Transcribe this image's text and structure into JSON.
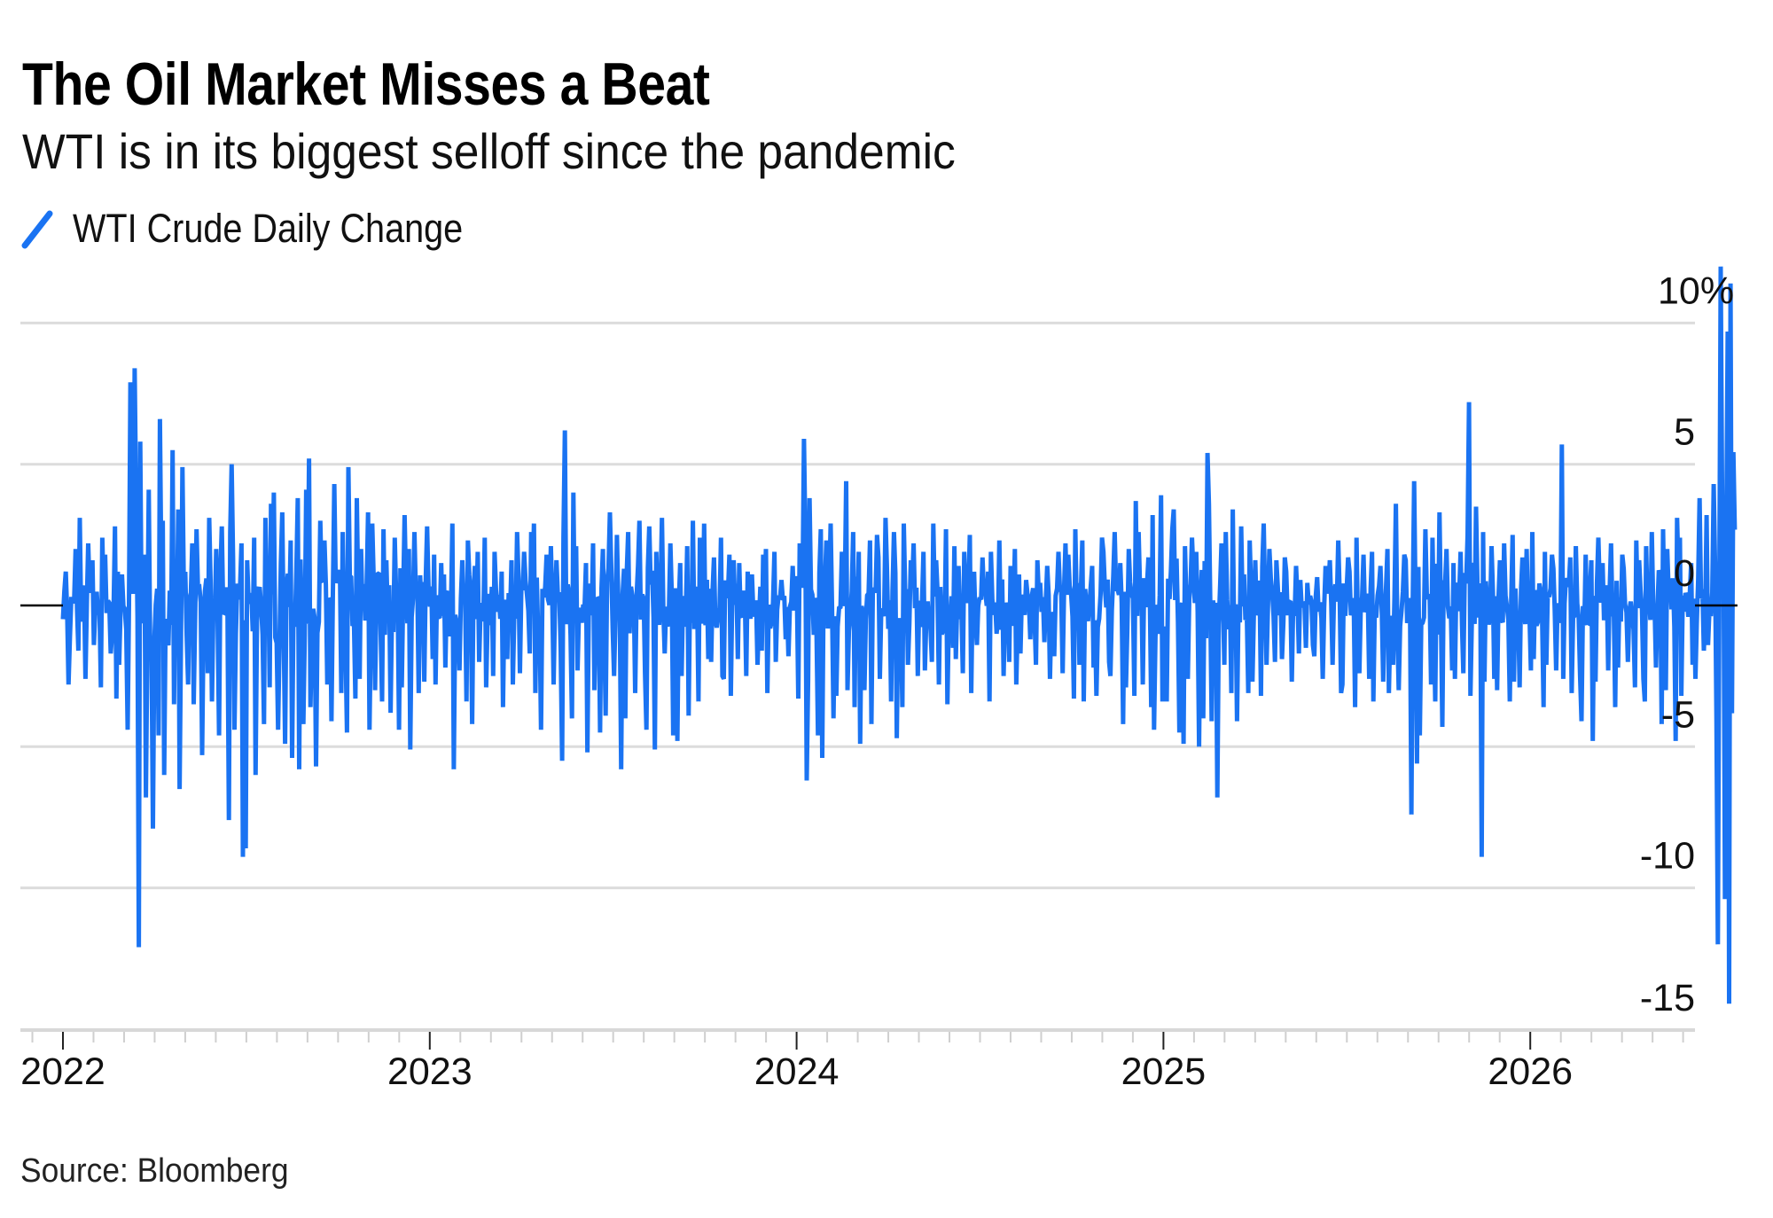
{
  "title": "The Oil Market Misses a Beat",
  "subtitle": "WTI is in its biggest selloff since the pandemic",
  "source": "Source: Bloomberg",
  "chart_data": {
    "type": "line",
    "title": "The Oil Market Misses a Beat",
    "subtitle": "WTI is in its biggest selloff since the pandemic",
    "xlabel": "",
    "ylabel": "",
    "legend": {
      "position": "top-left",
      "entries": [
        {
          "name": "WTI Crude Daily Change",
          "color": "#1a73f2"
        }
      ]
    },
    "y_unit": "%",
    "ylim": [
      -15,
      10
    ],
    "y_ticks": [
      10,
      5,
      0,
      -5,
      -10,
      -15
    ],
    "y_tick_labels": [
      "10%",
      "5",
      "0",
      "-5",
      "-10",
      "-15"
    ],
    "xlim": [
      "2022-01-01",
      "2026-04-30"
    ],
    "x_ticks": [
      "2022",
      "2023",
      "2024",
      "2025",
      "2026"
    ],
    "x_minor_ticks": "monthly",
    "grid": true,
    "zero_line": true,
    "series": [
      {
        "name": "WTI Crude Daily Change",
        "color": "#1a73f2",
        "resolution": "weekly high/low of daily % change (estimated from chart)",
        "start": "2022-01-03",
        "weekly_high_low": [
          [
            1.2,
            -2.8
          ],
          [
            2.0,
            -1.1
          ],
          [
            3.1,
            -1.6
          ],
          [
            2.2,
            -2.6
          ],
          [
            1.6,
            -1.4
          ],
          [
            2.4,
            -2.9
          ],
          [
            1.8,
            -1.7
          ],
          [
            2.8,
            -3.3
          ],
          [
            1.1,
            -2.1
          ],
          [
            7.9,
            -4.4
          ],
          [
            8.4,
            -12.1
          ],
          [
            5.8,
            -6.8
          ],
          [
            4.1,
            -7.9
          ],
          [
            6.6,
            -4.6
          ],
          [
            3.0,
            -6.0
          ],
          [
            5.5,
            -3.5
          ],
          [
            3.4,
            -6.5
          ],
          [
            4.9,
            -2.8
          ],
          [
            2.2,
            -3.5
          ],
          [
            2.7,
            -5.3
          ],
          [
            3.1,
            -2.4
          ],
          [
            2.0,
            -3.4
          ],
          [
            2.8,
            -4.6
          ],
          [
            2.6,
            -7.6
          ],
          [
            5.0,
            -4.4
          ],
          [
            2.2,
            -8.9
          ],
          [
            1.6,
            -8.6
          ],
          [
            2.4,
            -6.0
          ],
          [
            3.1,
            -4.2
          ],
          [
            3.6,
            -2.9
          ],
          [
            4.0,
            -4.4
          ],
          [
            3.3,
            -4.9
          ],
          [
            2.3,
            -5.4
          ],
          [
            3.8,
            -5.8
          ],
          [
            4.1,
            -4.2
          ],
          [
            5.2,
            -3.6
          ],
          [
            3.0,
            -5.7
          ],
          [
            2.3,
            -2.8
          ],
          [
            4.3,
            -4.1
          ],
          [
            2.6,
            -3.1
          ],
          [
            4.9,
            -4.5
          ],
          [
            3.8,
            -3.3
          ],
          [
            2.0,
            -2.6
          ],
          [
            3.3,
            -4.4
          ],
          [
            2.9,
            -3.0
          ],
          [
            2.7,
            -3.4
          ],
          [
            1.6,
            -3.8
          ],
          [
            2.4,
            -4.4
          ],
          [
            3.2,
            -2.9
          ],
          [
            2.0,
            -5.1
          ],
          [
            2.6,
            -3.1
          ],
          [
            2.8,
            -2.7
          ],
          [
            1.8,
            -1.9
          ],
          [
            1.5,
            -2.8
          ],
          [
            1.1,
            -2.2
          ],
          [
            2.9,
            -5.8
          ],
          [
            1.6,
            -2.3
          ],
          [
            2.3,
            -3.4
          ],
          [
            1.4,
            -4.2
          ],
          [
            1.9,
            -2.0
          ],
          [
            2.4,
            -2.9
          ],
          [
            1.9,
            -2.5
          ],
          [
            1.2,
            -3.6
          ],
          [
            1.6,
            -1.9
          ],
          [
            2.6,
            -2.8
          ],
          [
            1.9,
            -2.4
          ],
          [
            2.6,
            -1.7
          ],
          [
            2.9,
            -3.1
          ],
          [
            1.8,
            -4.4
          ],
          [
            2.1,
            -2.8
          ],
          [
            1.6,
            -1.6
          ],
          [
            6.2,
            -5.5
          ],
          [
            4.0,
            -4.0
          ],
          [
            2.1,
            -2.3
          ],
          [
            1.5,
            -5.2
          ],
          [
            2.2,
            -3.0
          ],
          [
            2.0,
            -4.5
          ],
          [
            3.3,
            -3.9
          ],
          [
            2.5,
            -2.5
          ],
          [
            1.3,
            -5.8
          ],
          [
            2.6,
            -4.0
          ],
          [
            1.4,
            -3.1
          ],
          [
            3.0,
            -2.4
          ],
          [
            2.8,
            -4.4
          ],
          [
            1.9,
            -5.1
          ],
          [
            3.1,
            -1.7
          ],
          [
            2.2,
            -4.6
          ],
          [
            1.5,
            -4.8
          ],
          [
            2.1,
            -2.5
          ],
          [
            3.0,
            -3.9
          ],
          [
            2.4,
            -3.4
          ],
          [
            2.9,
            -1.9
          ],
          [
            1.7,
            -2.0
          ],
          [
            2.4,
            -2.5
          ],
          [
            1.8,
            -2.6
          ],
          [
            1.6,
            -3.2
          ],
          [
            1.5,
            -1.9
          ],
          [
            1.2,
            -2.5
          ],
          [
            1.1,
            -2.1
          ],
          [
            1.8,
            -1.6
          ],
          [
            2.0,
            -3.1
          ],
          [
            1.9,
            -2.0
          ],
          [
            0.9,
            -1.2
          ],
          [
            1.4,
            -1.8
          ],
          [
            2.2,
            -3.3
          ],
          [
            5.9,
            -6.2
          ],
          [
            3.8,
            -2.6
          ],
          [
            2.7,
            -4.6
          ],
          [
            2.3,
            -5.4
          ],
          [
            2.9,
            -4.0
          ],
          [
            1.9,
            -3.2
          ],
          [
            4.4,
            -3.0
          ],
          [
            2.6,
            -3.6
          ],
          [
            1.9,
            -4.9
          ],
          [
            2.3,
            -3.0
          ],
          [
            2.5,
            -4.2
          ],
          [
            1.7,
            -2.6
          ],
          [
            3.1,
            -3.4
          ],
          [
            2.6,
            -4.7
          ],
          [
            2.9,
            -3.6
          ],
          [
            1.6,
            -2.1
          ],
          [
            2.2,
            -2.5
          ],
          [
            1.9,
            -2.3
          ],
          [
            2.9,
            -2.0
          ],
          [
            1.6,
            -2.8
          ],
          [
            2.7,
            -3.5
          ],
          [
            2.1,
            -1.5
          ],
          [
            1.4,
            -1.9
          ],
          [
            1.9,
            -2.4
          ],
          [
            2.5,
            -3.1
          ],
          [
            1.7,
            -1.4
          ],
          [
            1.2,
            -3.4
          ],
          [
            1.9,
            -1.0
          ],
          [
            2.3,
            -2.5
          ],
          [
            1.4,
            -2.0
          ],
          [
            2.0,
            -2.8
          ],
          [
            1.1,
            -1.7
          ],
          [
            0.9,
            -1.2
          ],
          [
            1.6,
            -2.1
          ],
          [
            0.8,
            -1.3
          ],
          [
            1.4,
            -2.6
          ],
          [
            1.9,
            -1.8
          ],
          [
            2.2,
            -2.4
          ],
          [
            1.8,
            -3.3
          ],
          [
            2.7,
            -2.1
          ],
          [
            2.3,
            -3.4
          ],
          [
            1.4,
            -2.2
          ],
          [
            2.4,
            -3.2
          ],
          [
            1.9,
            -2.0
          ],
          [
            2.6,
            -2.5
          ],
          [
            1.5,
            -4.2
          ],
          [
            2.0,
            -2.9
          ],
          [
            3.7,
            -3.2
          ],
          [
            2.6,
            -2.8
          ],
          [
            1.7,
            -3.6
          ],
          [
            3.2,
            -4.4
          ],
          [
            3.9,
            -3.4
          ],
          [
            2.7,
            -3.4
          ],
          [
            3.4,
            -4.5
          ],
          [
            2.1,
            -4.9
          ],
          [
            2.4,
            -2.6
          ],
          [
            1.9,
            -5.0
          ],
          [
            5.4,
            -4.0
          ],
          [
            3.6,
            -4.1
          ],
          [
            2.2,
            -6.8
          ],
          [
            2.6,
            -2.1
          ],
          [
            3.4,
            -3.1
          ],
          [
            2.8,
            -4.1
          ],
          [
            2.3,
            -3.1
          ],
          [
            1.6,
            -2.7
          ],
          [
            2.9,
            -3.2
          ],
          [
            2.0,
            -2.1
          ],
          [
            1.6,
            -2.0
          ],
          [
            1.7,
            -1.9
          ],
          [
            1.2,
            -2.7
          ],
          [
            1.4,
            -1.7
          ],
          [
            0.9,
            -1.5
          ],
          [
            0.8,
            -1.4
          ],
          [
            1.0,
            -1.8
          ],
          [
            1.4,
            -2.6
          ],
          [
            1.6,
            -2.1
          ],
          [
            2.3,
            -3.1
          ],
          [
            1.7,
            -2.8
          ],
          [
            1.2,
            -3.6
          ],
          [
            2.4,
            -2.4
          ],
          [
            1.8,
            -2.6
          ],
          [
            1.9,
            -3.4
          ],
          [
            1.4,
            -2.7
          ],
          [
            2.0,
            -3.1
          ],
          [
            3.6,
            -2.1
          ],
          [
            1.8,
            -3.0
          ],
          [
            1.6,
            -7.4
          ],
          [
            4.4,
            -5.6
          ],
          [
            2.7,
            -4.6
          ],
          [
            2.4,
            -2.8
          ],
          [
            3.3,
            -3.4
          ],
          [
            2.0,
            -4.3
          ],
          [
            1.5,
            -2.3
          ],
          [
            1.9,
            -2.6
          ],
          [
            2.5,
            -2.4
          ],
          [
            7.2,
            -3.2
          ],
          [
            3.5,
            -8.9
          ],
          [
            2.6,
            -2.7
          ],
          [
            2.1,
            -2.6
          ],
          [
            1.6,
            -3.0
          ],
          [
            2.2,
            -3.4
          ],
          [
            2.5,
            -2.7
          ],
          [
            1.7,
            -2.9
          ],
          [
            2.0,
            -2.3
          ],
          [
            2.6,
            -1.9
          ],
          [
            1.9,
            -3.6
          ],
          [
            1.8,
            -2.1
          ],
          [
            1.3,
            -2.3
          ],
          [
            5.7,
            -2.6
          ],
          [
            1.7,
            -3.1
          ],
          [
            2.1,
            -2.5
          ],
          [
            1.8,
            -4.1
          ],
          [
            1.6,
            -4.8
          ],
          [
            2.4,
            -2.7
          ],
          [
            1.5,
            -2.3
          ],
          [
            2.2,
            -3.6
          ],
          [
            1.8,
            -2.2
          ],
          [
            1.3,
            -2.0
          ],
          [
            2.3,
            -2.9
          ],
          [
            1.6,
            -2.6
          ],
          [
            2.1,
            -3.4
          ],
          [
            2.6,
            -2.2
          ],
          [
            2.7,
            -4.2
          ],
          [
            2.0,
            -3.0
          ],
          [
            3.1,
            -4.8
          ],
          [
            2.4,
            -3.2
          ],
          [
            1.5,
            -2.1
          ],
          [
            3.8,
            -2.6
          ],
          [
            3.2,
            -1.6
          ],
          [
            4.3,
            -1.4
          ],
          [
            12.0,
            -12.0
          ],
          [
            9.7,
            -10.4
          ],
          [
            11.4,
            -14.1
          ]
        ],
        "notable_points": [
          {
            "date": "2022-03",
            "value": 8.4
          },
          {
            "date": "2022-03",
            "value": -12.1
          },
          {
            "date": "2023-04",
            "value": 6.2
          },
          {
            "date": "2024-10",
            "value": -6.8
          },
          {
            "date": "2025-04",
            "value": -7.4
          },
          {
            "date": "2025-06",
            "value": 7.2
          },
          {
            "date": "2025-06",
            "value": -8.9
          },
          {
            "date": "2026-03",
            "value": 12.0
          },
          {
            "date": "2026-03",
            "value": -12.0
          },
          {
            "date": "2026-04",
            "value": 11.4
          },
          {
            "date": "2026-04",
            "value": -14.1
          }
        ]
      }
    ]
  }
}
